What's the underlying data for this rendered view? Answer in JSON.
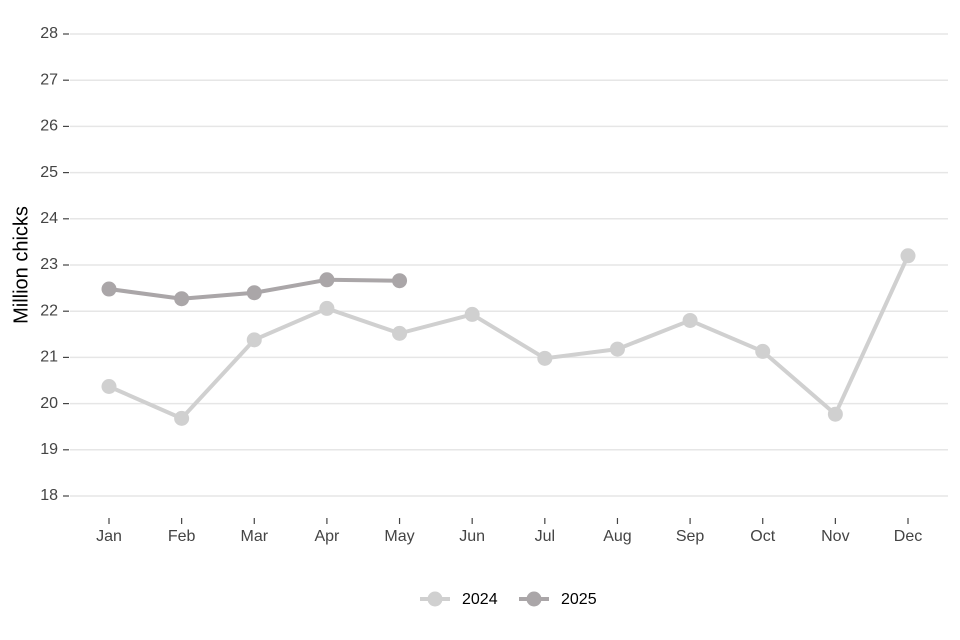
{
  "chart_data": {
    "type": "line",
    "y_label": "Million chicks",
    "categories": [
      "Jan",
      "Feb",
      "Mar",
      "Apr",
      "May",
      "Jun",
      "Jul",
      "Aug",
      "Sep",
      "Oct",
      "Nov",
      "Dec"
    ],
    "series": [
      {
        "name": "2024",
        "color": "#d0d0d0",
        "values": [
          20.37,
          19.68,
          21.38,
          22.06,
          21.52,
          21.93,
          20.98,
          21.18,
          21.8,
          21.13,
          19.77,
          23.2
        ]
      },
      {
        "name": "2025",
        "color": "#aaa6a8",
        "values": [
          22.48,
          22.27,
          22.4,
          22.68,
          22.66,
          null,
          null,
          null,
          null,
          null,
          null,
          null
        ]
      }
    ],
    "ylim": [
      17.5,
      28.5
    ],
    "yticks": [
      18,
      19,
      20,
      21,
      22,
      23,
      24,
      25,
      26,
      27,
      28
    ],
    "grid": true,
    "legend": "bottom"
  }
}
